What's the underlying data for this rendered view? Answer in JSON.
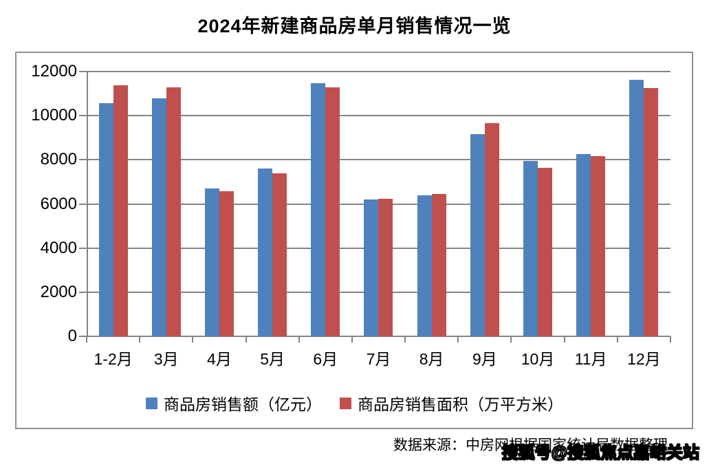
{
  "chart_data": {
    "type": "bar",
    "title": "2024年新建商品房单月销售情况一览",
    "categories": [
      "1-2月",
      "3月",
      "4月",
      "5月",
      "6月",
      "7月",
      "8月",
      "9月",
      "10月",
      "11月",
      "12月"
    ],
    "series": [
      {
        "name": "商品房销售额（亿元）",
        "color": "#4F81BD",
        "values": [
          10566,
          10789,
          6712,
          7598,
          11468,
          6197,
          6393,
          9153,
          7963,
          8263,
          11625
        ]
      },
      {
        "name": "商品房销售面积（万平方米）",
        "color": "#C0504D",
        "values": [
          11369,
          11299,
          6584,
          7390,
          11274,
          6233,
          6453,
          9665,
          7633,
          8177,
          11260
        ]
      }
    ],
    "xlabel": "",
    "ylabel": "",
    "ylim": [
      0,
      12000
    ],
    "yticks": [
      0,
      2000,
      4000,
      6000,
      8000,
      10000,
      12000
    ],
    "grid": true,
    "legend_position": "bottom",
    "grid_color": "#848484"
  },
  "footer": {
    "source_text": "数据来源：中房网根据国家统计局数据整理",
    "watermark": "搜狐号@搜狐焦点嘉峪关站"
  }
}
